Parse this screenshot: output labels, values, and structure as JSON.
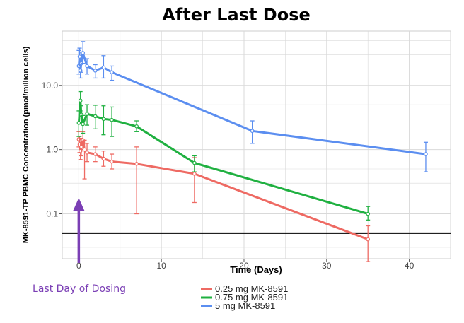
{
  "chart_data": {
    "type": "line",
    "title": "After Last Dose",
    "xlabel": "Time (Days)",
    "ylabel": "MK-8591-TP PBMC Concentration (pmol/million cells)",
    "y_scale": "log",
    "xlim": [
      -2,
      45
    ],
    "ylim": [
      0.02,
      70
    ],
    "x_ticks": [
      0,
      10,
      20,
      30,
      40
    ],
    "x_tick_labels": [
      "0",
      "10",
      "20",
      "30",
      "40"
    ],
    "y_ticks": [
      0.1,
      1,
      10
    ],
    "y_tick_labels": [
      "0.1",
      "1.0",
      "10.0"
    ],
    "grid": true,
    "legend_position": "bottom-center",
    "reference_line": {
      "y": 0.05,
      "color": "#000000"
    },
    "annotation": {
      "text": "Last Day of Dosing",
      "x": 0,
      "color": "#7b3fb5"
    },
    "series": [
      {
        "name": "0.25 mg MK-8591",
        "color": "#ee6a63",
        "points": [
          {
            "x": 0,
            "y": 1.45,
            "lo": 1.1,
            "hi": 1.9
          },
          {
            "x": 0.1,
            "y": 1.2,
            "lo": 0.9,
            "hi": 1.6
          },
          {
            "x": 0.2,
            "y": 0.95,
            "lo": 0.7,
            "hi": 1.3
          },
          {
            "x": 0.3,
            "y": 1.1,
            "lo": 0.8,
            "hi": 1.5
          },
          {
            "x": 0.5,
            "y": 1.4,
            "lo": 1.0,
            "hi": 1.9
          },
          {
            "x": 0.7,
            "y": 1.0,
            "lo": 0.35,
            "hi": 1.4
          },
          {
            "x": 1,
            "y": 0.9,
            "lo": 0.65,
            "hi": 1.25
          },
          {
            "x": 2,
            "y": 0.85,
            "lo": 0.65,
            "hi": 1.1
          },
          {
            "x": 3,
            "y": 0.72,
            "lo": 0.55,
            "hi": 0.95
          },
          {
            "x": 4,
            "y": 0.65,
            "lo": 0.5,
            "hi": 0.85
          },
          {
            "x": 7,
            "y": 0.6,
            "lo": 0.1,
            "hi": 1.1
          },
          {
            "x": 14,
            "y": 0.42,
            "lo": 0.15,
            "hi": 0.75
          },
          {
            "x": 35,
            "y": 0.04,
            "lo": 0.018,
            "hi": 0.065
          }
        ]
      },
      {
        "name": "0.75 mg MK-8591",
        "color": "#1fb040",
        "points": [
          {
            "x": 0,
            "y": 2.6,
            "lo": 1.6,
            "hi": 4.0
          },
          {
            "x": 0.2,
            "y": 5.8,
            "lo": 4.0,
            "hi": 8.0
          },
          {
            "x": 0.3,
            "y": 3.5,
            "lo": 2.5,
            "hi": 4.8
          },
          {
            "x": 0.5,
            "y": 2.5,
            "lo": 1.8,
            "hi": 3.4
          },
          {
            "x": 1,
            "y": 3.6,
            "lo": 2.4,
            "hi": 5.0
          },
          {
            "x": 2,
            "y": 3.3,
            "lo": 2.1,
            "hi": 4.9
          },
          {
            "x": 3,
            "y": 3.0,
            "lo": 1.7,
            "hi": 4.8
          },
          {
            "x": 4,
            "y": 2.9,
            "lo": 1.6,
            "hi": 4.6
          },
          {
            "x": 7,
            "y": 2.3,
            "lo": 1.9,
            "hi": 2.8
          },
          {
            "x": 14,
            "y": 0.62,
            "lo": 0.45,
            "hi": 0.8
          },
          {
            "x": 35,
            "y": 0.1,
            "lo": 0.08,
            "hi": 0.13
          }
        ]
      },
      {
        "name": "5 mg MK-8591",
        "color": "#5b8ef0",
        "points": [
          {
            "x": 0,
            "y": 20,
            "lo": 15,
            "hi": 35
          },
          {
            "x": 0.1,
            "y": 28,
            "lo": 20,
            "hi": 38
          },
          {
            "x": 0.2,
            "y": 17,
            "lo": 13,
            "hi": 24
          },
          {
            "x": 0.3,
            "y": 22,
            "lo": 16,
            "hi": 32
          },
          {
            "x": 0.5,
            "y": 32,
            "lo": 22,
            "hi": 48
          },
          {
            "x": 1,
            "y": 20,
            "lo": 15,
            "hi": 26
          },
          {
            "x": 2,
            "y": 17,
            "lo": 13,
            "hi": 21
          },
          {
            "x": 3,
            "y": 19,
            "lo": 13,
            "hi": 29
          },
          {
            "x": 4,
            "y": 16,
            "lo": 12,
            "hi": 20
          },
          {
            "x": 21,
            "y": 1.95,
            "lo": 1.25,
            "hi": 2.8
          },
          {
            "x": 42,
            "y": 0.85,
            "lo": 0.45,
            "hi": 1.3
          }
        ]
      }
    ]
  }
}
